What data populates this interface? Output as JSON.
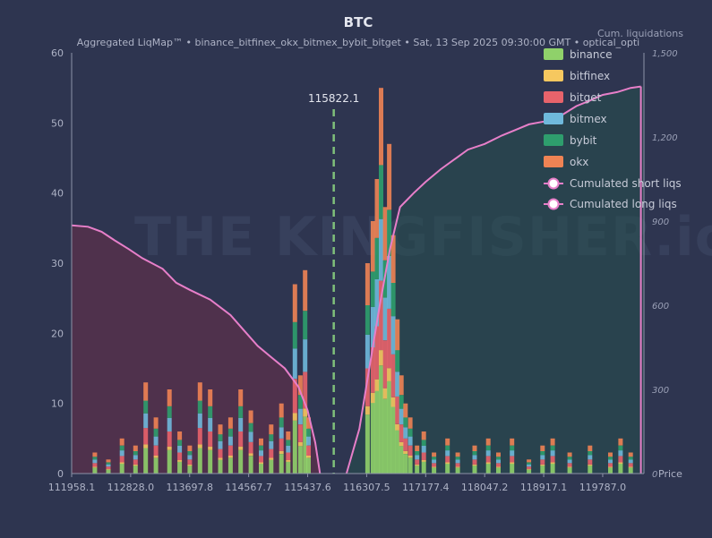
{
  "chart_data": {
    "type": "bar",
    "title": "BTC",
    "subtitle": "Aggregated LiqMap™  •  binance_bitfinex_okx_bitmex_bybit_bitget  •  Sat, 13 Sep 2025 09:30:00 GMT  •  optical_opti",
    "right_axis_label": "Cum. liquidations",
    "xlabel": "Price",
    "x_ticks": [
      "111958.1",
      "112828.0",
      "113697.8",
      "114567.7",
      "115437.6",
      "116307.5",
      "117177.4",
      "118047.2",
      "118917.1",
      "119787.0"
    ],
    "x_range": [
      111958.1,
      120395
    ],
    "ylim": [
      0,
      60
    ],
    "y_ticks": [
      0,
      10,
      20,
      30,
      40,
      50,
      60
    ],
    "y2lim": [
      0,
      1500
    ],
    "y2_ticks": [
      "0",
      "300",
      "600",
      "900",
      "1,200",
      "1,500"
    ],
    "current_price": 115822.1,
    "current_price_label": "115822.1",
    "exchanges": [
      {
        "name": "binance",
        "color": "#8fd16a"
      },
      {
        "name": "bitfinex",
        "color": "#f6c85f"
      },
      {
        "name": "bitget",
        "color": "#e8636b"
      },
      {
        "name": "bitmex",
        "color": "#6fb9dc"
      },
      {
        "name": "bybit",
        "color": "#2e9e6d"
      },
      {
        "name": "okx",
        "color": "#ef8354"
      }
    ],
    "cumulative_series": [
      {
        "name": "Cumulated short liqs",
        "color": "#e77fc9",
        "x": [
          111958.1,
          112200,
          112400,
          112600,
          112800,
          113000,
          113300,
          113500,
          113700,
          114000,
          114300,
          114500,
          114700,
          114900,
          115100,
          115300,
          115437.6,
          115550,
          115620
        ],
        "y": [
          885,
          880,
          862,
          830,
          800,
          768,
          730,
          680,
          655,
          620,
          565,
          510,
          455,
          415,
          375,
          310,
          225,
          110,
          0
        ]
      },
      {
        "name": "Cumulated long liqs",
        "color": "#e77fc9",
        "x": [
          116010,
          116200,
          116350,
          116500,
          116650,
          116800,
          116900,
          117000,
          117177.4,
          117400,
          117600,
          117800,
          118047.2,
          118300,
          118500,
          118700,
          118917.1,
          119200,
          119400,
          119600,
          119787.0,
          120000,
          120200,
          120350
        ],
        "y": [
          0,
          160,
          380,
          600,
          800,
          950,
          975,
          1000,
          1040,
          1085,
          1120,
          1155,
          1175,
          1205,
          1225,
          1245,
          1255,
          1280,
          1310,
          1330,
          1350,
          1360,
          1375,
          1380
        ]
      }
    ],
    "bars": {
      "x": [
        112300,
        112500,
        112700,
        112900,
        113050,
        113200,
        113400,
        113550,
        113700,
        113850,
        114000,
        114150,
        114300,
        114450,
        114600,
        114750,
        114900,
        115050,
        115150,
        115250,
        115330,
        115400,
        115450,
        116320,
        116400,
        116460,
        116520,
        116580,
        116640,
        116700,
        116760,
        116820,
        116880,
        116950,
        117050,
        117150,
        117300,
        117500,
        117650,
        117900,
        118100,
        118250,
        118450,
        118700,
        118900,
        119050,
        119300,
        119600,
        119900,
        120050,
        120200
      ],
      "values": [
        3,
        2,
        5,
        4,
        13,
        8,
        12,
        6,
        4,
        13,
        12,
        7,
        8,
        12,
        9,
        5,
        7,
        10,
        6,
        27,
        14,
        29,
        8,
        30,
        36,
        42,
        55,
        38,
        47,
        34,
        22,
        14,
        10,
        8,
        4,
        6,
        3,
        5,
        3,
        4,
        5,
        3,
        5,
        2,
        4,
        5,
        3,
        4,
        3,
        5,
        3
      ]
    },
    "watermark": "THE KINGFISHER.io",
    "grid": false,
    "legend_position": "top-right"
  }
}
